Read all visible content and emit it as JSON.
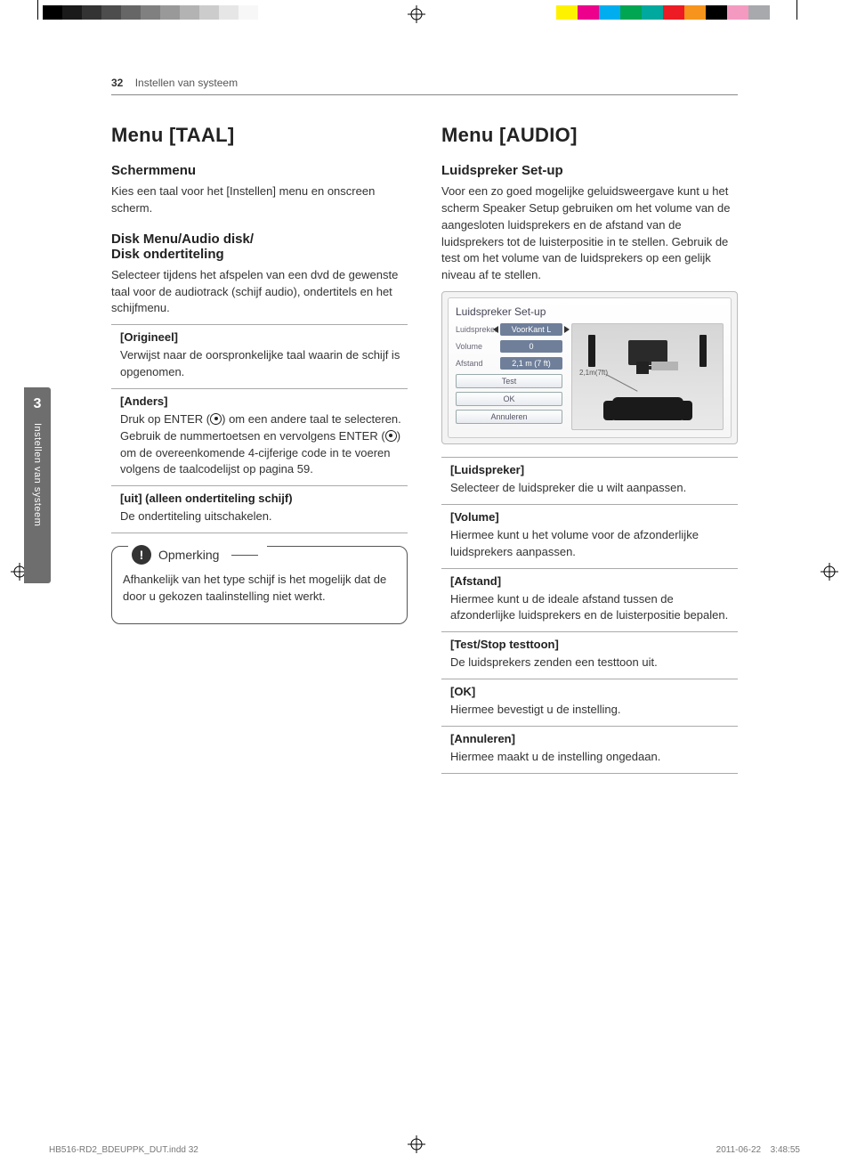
{
  "page": {
    "number": "32",
    "section": "Instellen van systeem",
    "sidetab_number": "3",
    "sidetab_text": "Instellen van systeem"
  },
  "color_bars": {
    "left": [
      "#000000",
      "#1a1a1a",
      "#333333",
      "#4d4d4d",
      "#666666",
      "#808080",
      "#999999",
      "#b3b3b3",
      "#cccccc",
      "#e6e6e6",
      "#f7f7f7",
      "#ffffff",
      "#ffffff",
      "#ffffff"
    ],
    "right": [
      "#fff200",
      "#ec008c",
      "#00aeef",
      "#00a651",
      "#00a99d",
      "#ed1c24",
      "#f7941d",
      "#000000",
      "#f49ac1",
      "#a7a9ac",
      "#ffffff"
    ]
  },
  "left_column": {
    "h1": "Menu [TAAL]",
    "s1_h2": "Schermmenu",
    "s1_p": "Kies een taal voor het [Instellen] menu en onscreen scherm.",
    "s2_h2_line1": "Disk Menu/Audio disk/",
    "s2_h2_line2": "Disk ondertiteling",
    "s2_p": "Selecteer tijdens het afspelen van een dvd de gewenste taal voor de audiotrack (schijf audio), ondertitels en het schijfmenu.",
    "opt1_label": "[Origineel]",
    "opt1_text": "Verwijst naar de oorspronkelijke taal waarin de schijf is opgenomen.",
    "opt2_label": "[Anders]",
    "opt2_text_a": "Druk op ENTER (",
    "opt2_text_b": ") om een andere taal te selecteren. Gebruik de nummertoetsen en vervolgens ENTER (",
    "opt2_text_c": ") om de overeenkomende 4-cijferige code in te voeren volgens de taalcodelijst op pagina 59.",
    "opt3_label": "[uit] (alleen ondertiteling schijf)",
    "opt3_text": "De ondertiteling uitschakelen.",
    "note_title": "Opmerking",
    "note_text": "Afhankelijk van het type schijf is het mogelijk dat de door u gekozen taalinstelling niet werkt."
  },
  "right_column": {
    "h1": "Menu [AUDIO]",
    "s1_h2": "Luidspreker Set-up",
    "s1_p": "Voor een zo goed mogelijke geluidsweergave kunt u het scherm Speaker Setup gebruiken om het volume van de aangesloten luidsprekers en de afstand van de luidsprekers tot de luisterpositie in te stellen. Gebruik de test om het volume van de luidsprekers op een gelijk niveau af te stellen.",
    "screenshot": {
      "title": "Luidspreker Set-up",
      "rows": {
        "speaker_k": "Luidspreker",
        "speaker_v": "VoorKant L",
        "volume_k": "Volume",
        "volume_v": "0",
        "distance_k": "Afstand",
        "distance_v": "2,1 m (7 ft)"
      },
      "buttons": {
        "test": "Test",
        "ok": "OK",
        "cancel": "Annuleren"
      },
      "room_label": "2,1m(7ft)"
    },
    "opts": [
      {
        "label": "[Luidspreker]",
        "text": "Selecteer de luidspreker die u wilt aanpassen."
      },
      {
        "label": "[Volume]",
        "text": "Hiermee kunt u het volume voor de afzonderlijke luidsprekers aanpassen."
      },
      {
        "label": "[Afstand]",
        "text": "Hiermee kunt u de ideale afstand tussen de afzonderlijke luidsprekers en de luisterpositie bepalen."
      },
      {
        "label": "[Test/Stop testtoon]",
        "text": "De luidsprekers zenden een testtoon uit."
      },
      {
        "label": "[OK]",
        "text": "Hiermee bevestigt u de instelling."
      },
      {
        "label": "[Annuleren]",
        "text": "Hiermee maakt u de instelling ongedaan."
      }
    ]
  },
  "footer": {
    "file": "HB516-RD2_BDEUPPK_DUT.indd   32",
    "timestamp": "2011-06-22     3:48:55"
  }
}
